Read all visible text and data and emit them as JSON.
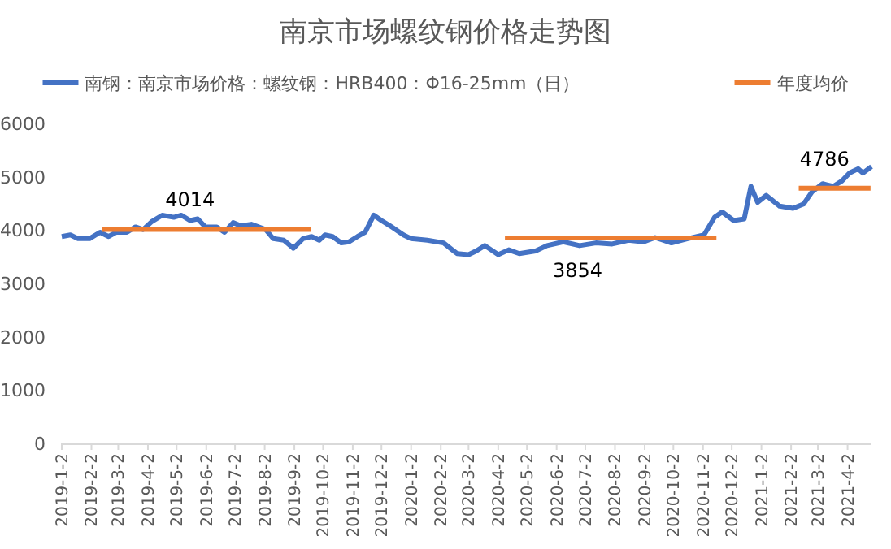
{
  "chart_data": {
    "type": "line",
    "title": "南京市场螺纹钢价格走势图",
    "legend": "top",
    "marker": "none",
    "line_style": "solid",
    "x": [
      "2019-01-02",
      "2019-01-11",
      "2019-01-19",
      "2019-01-31",
      "2019-02-11",
      "2019-02-20",
      "2019-02-28",
      "2019-03-11",
      "2019-03-20",
      "2019-03-28",
      "2019-04-06",
      "2019-04-17",
      "2019-04-29",
      "2019-05-07",
      "2019-05-16",
      "2019-05-24",
      "2019-06-01",
      "2019-06-13",
      "2019-06-21",
      "2019-06-30",
      "2019-07-08",
      "2019-07-19",
      "2019-08-03",
      "2019-08-11",
      "2019-08-22",
      "2019-09-01",
      "2019-09-11",
      "2019-09-20",
      "2019-09-28",
      "2019-10-04",
      "2019-10-12",
      "2019-10-21",
      "2019-10-29",
      "2019-11-07",
      "2019-11-15",
      "2019-11-24",
      "2019-12-02",
      "2019-12-11",
      "2019-12-25",
      "2020-01-02",
      "2020-01-19",
      "2020-02-05",
      "2020-02-14",
      "2020-02-19",
      "2020-03-02",
      "2020-03-10",
      "2020-03-19",
      "2020-04-02",
      "2020-04-13",
      "2020-04-24",
      "2020-05-11",
      "2020-05-23",
      "2020-06-09",
      "2020-06-26",
      "2020-07-13",
      "2020-07-30",
      "2020-08-16",
      "2020-09-01",
      "2020-09-13",
      "2020-09-30",
      "2020-10-17",
      "2020-11-03",
      "2020-11-14",
      "2020-11-22",
      "2020-12-04",
      "2020-12-15",
      "2020-12-22",
      "2020-12-29",
      "2021-01-07",
      "2021-01-21",
      "2021-02-04",
      "2021-02-15",
      "2021-02-24",
      "2021-03-07",
      "2021-03-18",
      "2021-03-27",
      "2021-04-04",
      "2021-04-13",
      "2021-04-18",
      "2021-04-27"
    ],
    "series": [
      {
        "name": "南钢：南京市场价格：螺纹钢：HRB400：Φ16-25mm（日）",
        "color": "#4472c4",
        "values": [
          3880,
          3910,
          3840,
          3840,
          3960,
          3880,
          3960,
          3960,
          4060,
          4010,
          4160,
          4280,
          4240,
          4280,
          4180,
          4210,
          4060,
          4060,
          3960,
          4140,
          4080,
          4110,
          4010,
          3840,
          3810,
          3660,
          3840,
          3880,
          3810,
          3910,
          3880,
          3760,
          3780,
          3880,
          3960,
          4280,
          4180,
          4080,
          3910,
          3840,
          3810,
          3760,
          3630,
          3560,
          3540,
          3610,
          3710,
          3540,
          3630,
          3560,
          3610,
          3710,
          3780,
          3710,
          3760,
          3740,
          3810,
          3780,
          3860,
          3760,
          3840,
          3910,
          4240,
          4340,
          4180,
          4210,
          4820,
          4520,
          4650,
          4450,
          4410,
          4490,
          4720,
          4870,
          4820,
          4920,
          5070,
          5150,
          5070,
          5190
        ]
      },
      {
        "name": "年度均价",
        "type": "line",
        "color": "#ed7d31",
        "x": [
          "2019-02-13",
          "2019-09-19"
        ],
        "values": [
          4014,
          4014
        ]
      },
      {
        "type": "line",
        "color": "#ed7d31",
        "x": [
          "2020-04-09",
          "2020-11-16"
        ],
        "values": [
          3854,
          3854
        ]
      },
      {
        "type": "line",
        "color": "#ed7d31",
        "x": [
          "2021-02-10",
          "2021-04-26"
        ],
        "values": [
          4786,
          4786
        ]
      }
    ],
    "annotations": [
      {
        "text": "4014",
        "x": "2019-05-16",
        "y": 4014
      },
      {
        "text": "3854",
        "x": "2020-06-24",
        "y": 3854
      },
      {
        "text": "4786",
        "x": "2021-03-09",
        "y": 4786
      }
    ],
    "xlim": [
      "2019-01-02",
      "2021-04-27"
    ],
    "xticks": [
      {
        "value": "2019-01-02",
        "label": "2019-1-2"
      },
      {
        "value": "2019-02-02",
        "label": "2019-2-2"
      },
      {
        "value": "2019-03-02",
        "label": "2019-3-2"
      },
      {
        "value": "2019-04-02",
        "label": "2019-4-2"
      },
      {
        "value": "2019-05-02",
        "label": "2019-5-2"
      },
      {
        "value": "2019-06-02",
        "label": "2019-6-2"
      },
      {
        "value": "2019-07-02",
        "label": "2019-7-2"
      },
      {
        "value": "2019-08-02",
        "label": "2019-8-2"
      },
      {
        "value": "2019-09-02",
        "label": "2019-9-2"
      },
      {
        "value": "2019-10-02",
        "label": "2019-10-2"
      },
      {
        "value": "2019-11-02",
        "label": "2019-11-2"
      },
      {
        "value": "2019-12-02",
        "label": "2019-12-2"
      },
      {
        "value": "2020-01-02",
        "label": "2020-1-2"
      },
      {
        "value": "2020-02-02",
        "label": "2020-2-2"
      },
      {
        "value": "2020-03-02",
        "label": "2020-3-2"
      },
      {
        "value": "2020-04-02",
        "label": "2020-4-2"
      },
      {
        "value": "2020-05-02",
        "label": "2020-5-2"
      },
      {
        "value": "2020-06-02",
        "label": "2020-6-2"
      },
      {
        "value": "2020-07-02",
        "label": "2020-7-2"
      },
      {
        "value": "2020-08-02",
        "label": "2020-8-2"
      },
      {
        "value": "2020-09-02",
        "label": "2020-9-2"
      },
      {
        "value": "2020-10-02",
        "label": "2020-10-2"
      },
      {
        "value": "2020-11-02",
        "label": "2020-11-2"
      },
      {
        "value": "2020-12-02",
        "label": "2020-12-2"
      },
      {
        "value": "2021-01-02",
        "label": "2021-1-2"
      },
      {
        "value": "2021-02-02",
        "label": "2021-2-2"
      },
      {
        "value": "2021-03-02",
        "label": "2021-3-2"
      },
      {
        "value": "2021-04-02",
        "label": "2021-4-2"
      }
    ],
    "ylim": [
      0,
      6000
    ],
    "yticks": [
      0,
      1000,
      2000,
      3000,
      4000,
      5000,
      6000
    ]
  }
}
